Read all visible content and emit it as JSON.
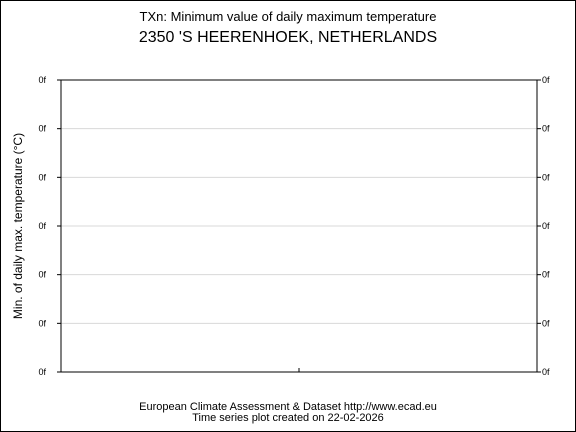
{
  "chart_data": {
    "type": "line",
    "title": "TXn: Minimum value of daily maximum temperature",
    "subtitle": "2350 'S HEERENHOEK, NETHERLANDS",
    "xlabel": "",
    "ylabel": "Min. of daily max. temperature (°C)",
    "y_tick_labels": [
      "0f",
      "0f",
      "0f",
      "0f",
      "0f",
      "0f",
      "0f"
    ],
    "x_tick_count": 1,
    "grid": true,
    "series": []
  },
  "footer": {
    "line1": "European Climate Assessment & Dataset  http://www.ecad.eu",
    "line2": "Time series plot created on 22-02-2026"
  }
}
